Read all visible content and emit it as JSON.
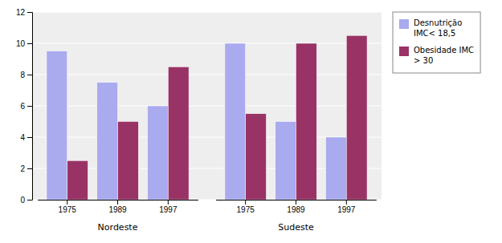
{
  "chart_data": {
    "type": "bar",
    "categories": [
      "1975",
      "1989",
      "1997",
      "1975",
      "1989",
      "1997"
    ],
    "groups": [
      "Nordeste",
      "Sudeste"
    ],
    "series": [
      {
        "name": "Desnutrição\nIMC< 18,5",
        "color": "#aaaaee",
        "values": [
          9.5,
          7.5,
          6.0,
          10.0,
          5.0,
          4.0
        ]
      },
      {
        "name": "Obesidade IMC\n> 30",
        "color": "#993366",
        "values": [
          2.5,
          5.0,
          8.5,
          5.5,
          10.0,
          10.5
        ]
      }
    ],
    "ylim": [
      0,
      12
    ],
    "yticks": [
      0,
      2,
      4,
      6,
      8,
      10,
      12
    ],
    "grid": true,
    "legend": "right"
  }
}
